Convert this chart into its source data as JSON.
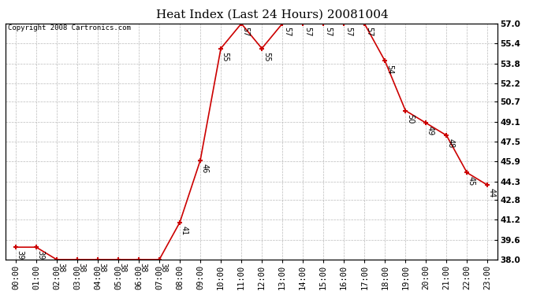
{
  "title": "Heat Index (Last 24 Hours) 20081004",
  "copyright": "Copyright 2008 Cartronics.com",
  "hours": [
    "00:00",
    "01:00",
    "02:00",
    "03:00",
    "04:00",
    "05:00",
    "06:00",
    "07:00",
    "08:00",
    "09:00",
    "10:00",
    "11:00",
    "12:00",
    "13:00",
    "14:00",
    "15:00",
    "16:00",
    "17:00",
    "18:00",
    "19:00",
    "20:00",
    "21:00",
    "22:00",
    "23:00"
  ],
  "values": [
    39,
    39,
    38,
    38,
    38,
    38,
    38,
    38,
    41,
    46,
    55,
    57,
    55,
    57,
    57,
    57,
    57,
    57,
    54,
    50,
    49,
    48,
    45,
    44
  ],
  "ylim": [
    38.0,
    57.0
  ],
  "yticks": [
    38.0,
    39.6,
    41.2,
    42.8,
    44.3,
    45.9,
    47.5,
    49.1,
    50.7,
    52.2,
    53.8,
    55.4,
    57.0
  ],
  "ytick_labels": [
    "38.0",
    "39.6",
    "41.2",
    "42.8",
    "44.3",
    "45.9",
    "47.5",
    "49.1",
    "50.7",
    "52.2",
    "53.8",
    "55.4",
    "57.0"
  ],
  "line_color": "#cc0000",
  "marker_color": "#cc0000",
  "bg_color": "#ffffff",
  "grid_color": "#bbbbbb",
  "title_fontsize": 11,
  "label_fontsize": 7,
  "tick_fontsize": 7.5,
  "copyright_fontsize": 6.5
}
